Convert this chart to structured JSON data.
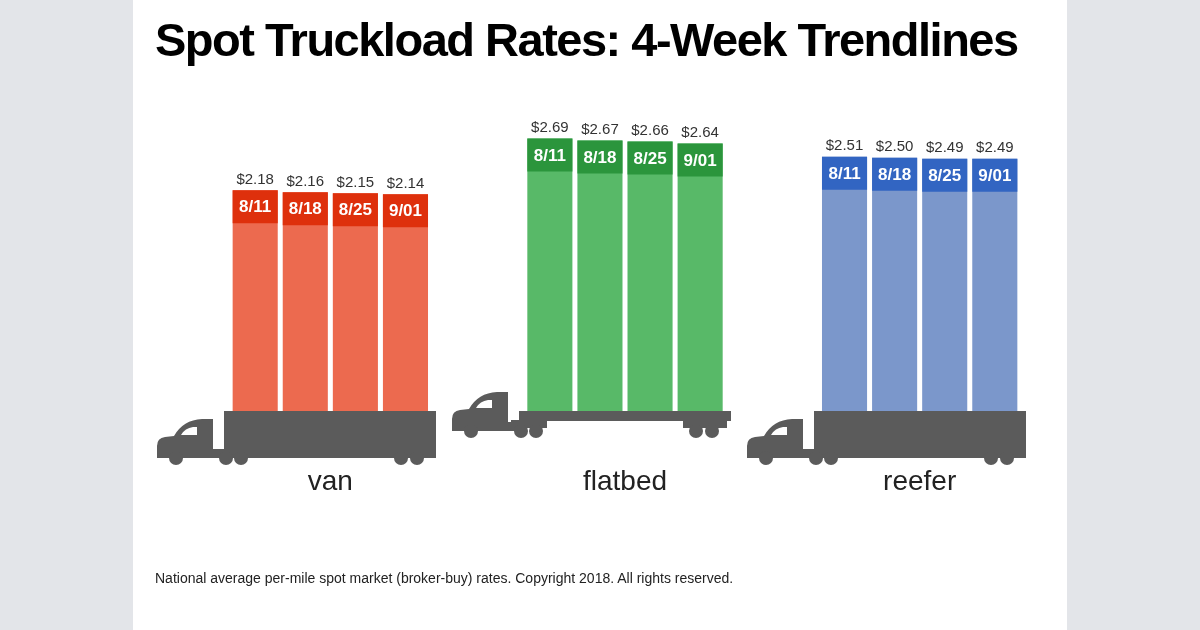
{
  "chart_data": {
    "type": "bar",
    "title": "Spot Truckload Rates: 4-Week Trendlines",
    "categories": [
      "van",
      "flatbed",
      "reefer"
    ],
    "series": [
      {
        "name": "8/11",
        "colors": [
          "#ec6a4f",
          "#58b968",
          "#7b97cb"
        ],
        "values": [
          2.18,
          2.69,
          2.51
        ],
        "value_labels": [
          "$2.18",
          "$2.69",
          "$2.51"
        ]
      },
      {
        "name": "8/18",
        "colors": [
          "#ec6a4f",
          "#58b968",
          "#7b97cb"
        ],
        "values": [
          2.16,
          2.67,
          2.5
        ],
        "value_labels": [
          "$2.16",
          "$2.67",
          "$2.50"
        ]
      },
      {
        "name": "8/25",
        "colors": [
          "#ec6a4f",
          "#58b968",
          "#7b97cb"
        ],
        "values": [
          2.15,
          2.66,
          2.49
        ],
        "value_labels": [
          "$2.15",
          "$2.66",
          "$2.49"
        ]
      },
      {
        "name": "9/01",
        "colors": [
          "#ec6a4f",
          "#58b968",
          "#7b97cb"
        ],
        "values": [
          2.14,
          2.64,
          2.49
        ],
        "value_labels": [
          "$2.14",
          "$2.64",
          "$2.49"
        ]
      }
    ],
    "tick_labels": "x",
    "annotations": [
      "National average per-mile spot market (broker-buy) rates. Copyright 2018. All rights reserved."
    ]
  }
}
